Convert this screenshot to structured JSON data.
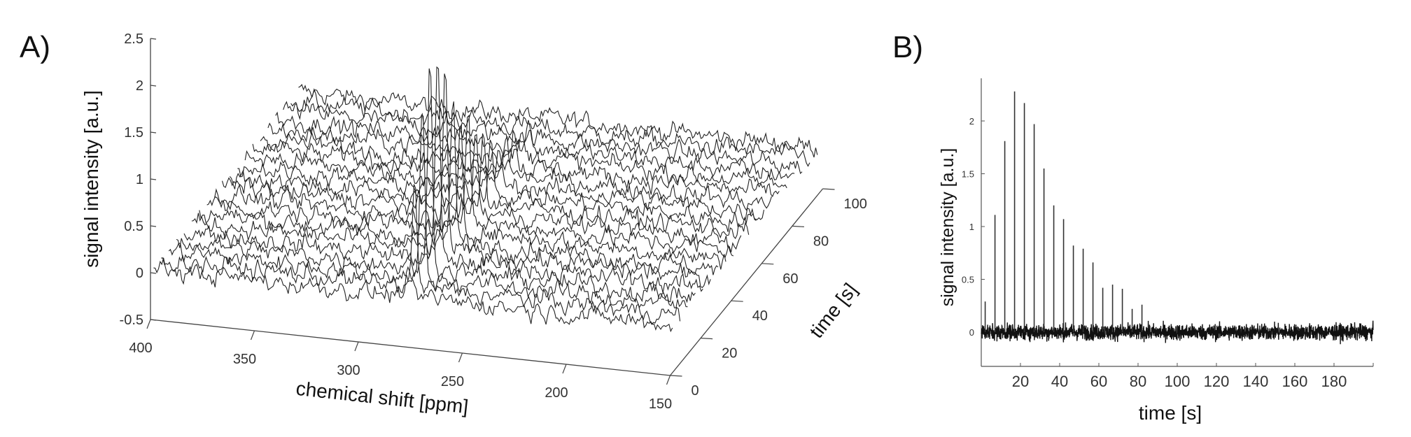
{
  "chart_data": [
    {
      "panel": "A)",
      "type": "line",
      "subtype": "3d-waterfall",
      "xlabel": "chemical shift [ppm]",
      "ylabel": "time [s]",
      "zlabel": "signal intensity [a.u.]",
      "xlim": [
        150,
        400
      ],
      "x_reversed": true,
      "ylim": [
        0,
        100
      ],
      "zlim": [
        -0.5,
        2.5
      ],
      "x_ticks": [
        "400",
        "350",
        "300",
        "250",
        "200",
        "150"
      ],
      "y_ticks": [
        "0",
        "20",
        "40",
        "60",
        "80",
        "100"
      ],
      "z_ticks": [
        "-0.5",
        "0",
        "0.5",
        "1",
        "1.5",
        "2",
        "2.5"
      ],
      "trace_times": [
        2,
        7,
        12,
        17,
        22,
        27,
        32,
        37,
        42,
        47,
        52,
        57,
        62,
        67,
        72,
        77,
        82,
        87,
        92,
        97
      ],
      "peak_position_ppm": 278,
      "peak_amplitudes": [
        0.29,
        1.11,
        1.81,
        2.28,
        2.17,
        1.97,
        1.55,
        1.2,
        1.07,
        0.82,
        0.79,
        0.66,
        0.42,
        0.45,
        0.41,
        0.22,
        0.26,
        0,
        0,
        0
      ],
      "noise_level": 0.15,
      "line_color": "#222222",
      "grid": false
    },
    {
      "panel": "B)",
      "type": "line",
      "xlabel": "time [s]",
      "ylabel": "signal intensity [a.u.]",
      "xlim": [
        0,
        200
      ],
      "ylim": [
        -0.3,
        2.4
      ],
      "x_ticks": [
        "20",
        "40",
        "60",
        "80",
        "100",
        "120",
        "140",
        "160",
        "180"
      ],
      "y_ticks": [
        "0",
        "0.5",
        "1",
        "1.5",
        "2"
      ],
      "peak_times": [
        2,
        7,
        12,
        17,
        22,
        27,
        32,
        37,
        42,
        47,
        52,
        57,
        62,
        67,
        72,
        77,
        82
      ],
      "peak_values": [
        0.29,
        1.11,
        1.81,
        2.28,
        2.17,
        1.97,
        1.55,
        1.2,
        1.07,
        0.82,
        0.79,
        0.66,
        0.42,
        0.45,
        0.41,
        0.22,
        0.26
      ],
      "noise_level": 0.1,
      "line_color": "#111111",
      "grid": false
    }
  ]
}
